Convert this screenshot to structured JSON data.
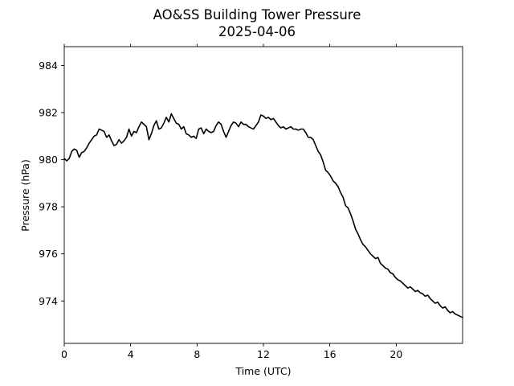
{
  "chart_data": {
    "type": "line",
    "title": "AO&SS Building Tower Pressure",
    "subtitle": "2025-04-06",
    "xlabel": "Time (UTC)",
    "ylabel": "Pressure (hPa)",
    "xlim": [
      0,
      24
    ],
    "ylim": [
      972.2,
      984.8
    ],
    "xticks": [
      0,
      4,
      8,
      12,
      16,
      20
    ],
    "xtick_labels": [
      "0",
      "4",
      "8",
      "12",
      "16",
      "20"
    ],
    "yticks": [
      974,
      976,
      978,
      980,
      982,
      984
    ],
    "ytick_labels": [
      "974",
      "976",
      "978",
      "980",
      "982",
      "984"
    ],
    "grid": false,
    "line_color": "#000000",
    "series": [
      {
        "x": [
          0.0,
          0.15,
          0.3,
          0.45,
          0.6,
          0.75,
          0.9,
          1.05,
          1.2,
          1.35,
          1.5,
          1.65,
          1.8,
          1.95,
          2.1,
          2.25,
          2.4,
          2.55,
          2.7,
          2.85,
          3.0,
          3.15,
          3.3,
          3.45,
          3.6,
          3.75,
          3.9,
          4.05,
          4.2,
          4.35,
          4.5,
          4.65,
          4.8,
          4.95,
          5.1,
          5.25,
          5.4,
          5.55,
          5.7,
          5.85,
          6.0,
          6.15,
          6.3,
          6.45,
          6.6,
          6.75,
          6.9,
          7.05,
          7.2,
          7.35,
          7.5,
          7.65,
          7.8,
          7.95,
          8.1,
          8.25,
          8.4,
          8.55,
          8.7,
          8.85,
          9.0,
          9.15,
          9.3,
          9.45,
          9.6,
          9.75,
          9.9,
          10.05,
          10.2,
          10.35,
          10.5,
          10.65,
          10.8,
          10.95,
          11.1,
          11.25,
          11.4,
          11.55,
          11.7,
          11.85,
          12.0,
          12.15,
          12.3,
          12.45,
          12.6,
          12.75,
          12.9,
          13.05,
          13.2,
          13.35,
          13.5,
          13.65,
          13.8,
          13.95,
          14.1,
          14.25,
          14.4,
          14.55,
          14.7,
          14.85,
          15.0,
          15.15,
          15.3,
          15.45,
          15.6,
          15.75,
          15.9,
          16.05,
          16.2,
          16.35,
          16.5,
          16.65,
          16.8,
          16.95,
          17.1,
          17.25,
          17.4,
          17.55,
          17.7,
          17.85,
          18.0,
          18.15,
          18.3,
          18.45,
          18.6,
          18.75,
          18.9,
          19.05,
          19.2,
          19.35,
          19.5,
          19.65,
          19.8,
          19.95,
          20.1,
          20.25,
          20.4,
          20.55,
          20.7,
          20.85,
          21.0,
          21.15,
          21.3,
          21.45,
          21.6,
          21.75,
          21.9,
          22.05,
          22.2,
          22.35,
          22.5,
          22.65,
          22.8,
          22.95,
          23.1,
          23.25,
          23.4,
          23.55,
          23.7,
          23.85,
          24.0
        ],
        "y": [
          980.05,
          979.95,
          980.05,
          980.35,
          980.45,
          980.4,
          980.1,
          980.3,
          980.35,
          980.5,
          980.7,
          980.85,
          981.0,
          981.05,
          981.3,
          981.25,
          981.2,
          980.95,
          981.05,
          980.8,
          980.6,
          980.65,
          980.85,
          980.7,
          980.8,
          980.95,
          981.3,
          981.0,
          981.2,
          981.15,
          981.4,
          981.6,
          981.5,
          981.4,
          980.85,
          981.1,
          981.45,
          981.65,
          981.3,
          981.35,
          981.55,
          981.8,
          981.6,
          981.95,
          981.75,
          981.55,
          981.5,
          981.3,
          981.4,
          981.1,
          981.05,
          980.95,
          981.0,
          980.9,
          981.3,
          981.35,
          981.1,
          981.3,
          981.2,
          981.15,
          981.2,
          981.45,
          981.6,
          981.5,
          981.2,
          980.95,
          981.2,
          981.45,
          981.6,
          981.55,
          981.4,
          981.6,
          981.5,
          981.5,
          981.4,
          981.35,
          981.3,
          981.45,
          981.6,
          981.9,
          981.85,
          981.75,
          981.8,
          981.7,
          981.75,
          981.6,
          981.45,
          981.35,
          981.4,
          981.3,
          981.35,
          981.4,
          981.3,
          981.3,
          981.25,
          981.3,
          981.3,
          981.15,
          980.95,
          980.95,
          980.85,
          980.6,
          980.35,
          980.2,
          979.9,
          979.55,
          979.45,
          979.3,
          979.1,
          979.0,
          978.85,
          978.6,
          978.4,
          978.05,
          977.95,
          977.7,
          977.4,
          977.05,
          976.85,
          976.6,
          976.4,
          976.3,
          976.15,
          976.0,
          975.9,
          975.8,
          975.85,
          975.6,
          975.5,
          975.4,
          975.35,
          975.2,
          975.15,
          975.0,
          974.9,
          974.85,
          974.75,
          974.65,
          974.55,
          974.6,
          974.5,
          974.4,
          974.45,
          974.35,
          974.3,
          974.2,
          974.25,
          974.1,
          974.0,
          973.9,
          973.95,
          973.8,
          973.7,
          973.75,
          973.6,
          973.5,
          973.55,
          973.45,
          973.4,
          973.35,
          973.3
        ]
      }
    ]
  }
}
